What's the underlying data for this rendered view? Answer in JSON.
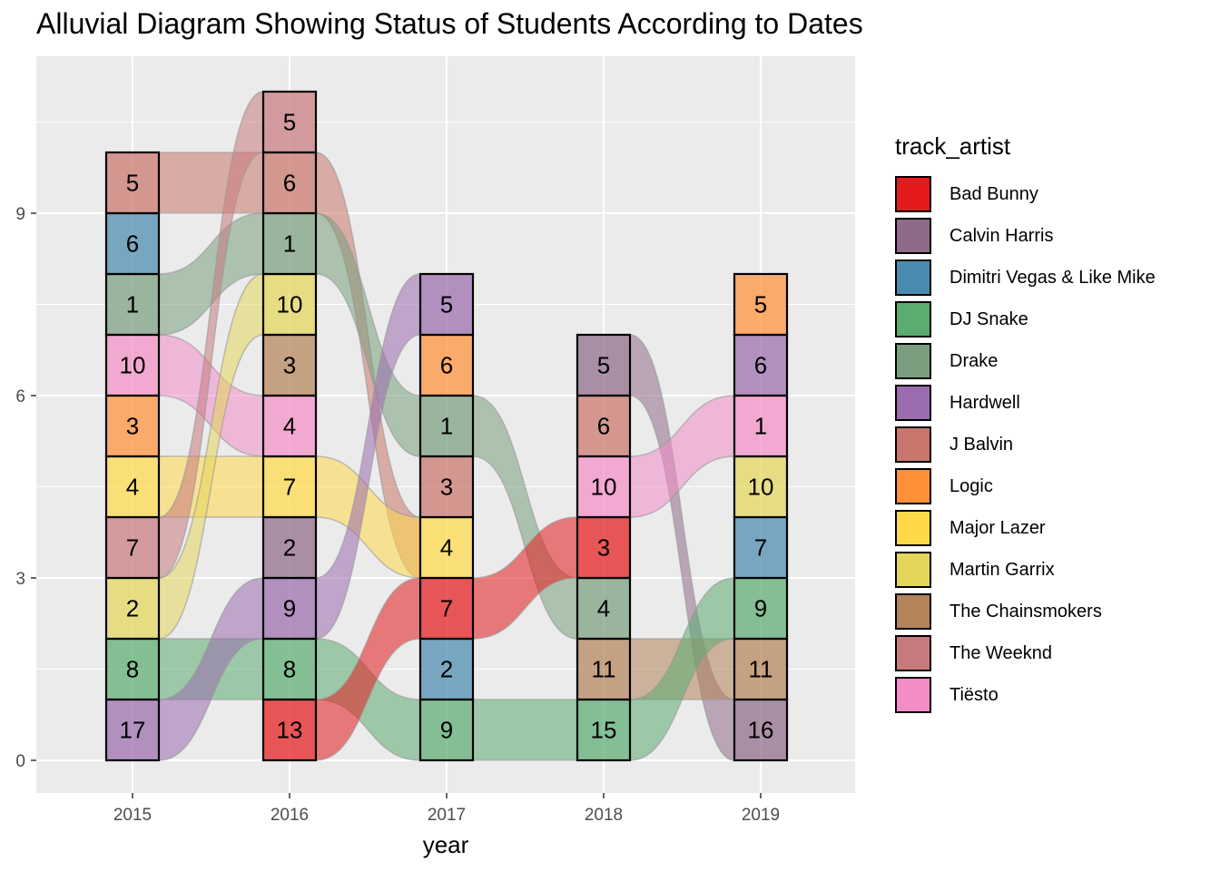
{
  "chart_data": {
    "type": "alluvial",
    "title": "Alluvial Diagram Showing Status of Students According to Dates",
    "xlabel": "year",
    "ylabel": "",
    "x_ticks": [
      "2015",
      "2016",
      "2017",
      "2018",
      "2019"
    ],
    "y_ticks": [
      "0",
      "3",
      "6",
      "9"
    ],
    "ylim": [
      0,
      11.5
    ],
    "legend_title": "track_artist",
    "legend_position": "right",
    "series": [
      {
        "name": "Bad Bunny",
        "color": "#E41A1C"
      },
      {
        "name": "Calvin Harris",
        "color": "#8F6B8A"
      },
      {
        "name": "Dimitri Vegas & Like Mike",
        "color": "#4A8CAF"
      },
      {
        "name": "DJ Snake",
        "color": "#5BAC71"
      },
      {
        "name": "Drake",
        "color": "#7A9E7E"
      },
      {
        "name": "Hardwell",
        "color": "#9A6CAE"
      },
      {
        "name": "J Balvin",
        "color": "#C9766C"
      },
      {
        "name": "Logic",
        "color": "#FF9038"
      },
      {
        "name": "Major Lazer",
        "color": "#FFD94A"
      },
      {
        "name": "Martin Garrix",
        "color": "#E3D65B"
      },
      {
        "name": "The Chainsmokers",
        "color": "#B5835A"
      },
      {
        "name": "The Weeknd",
        "color": "#C97A7E"
      },
      {
        "name": "Tiësto",
        "color": "#F38DC6"
      }
    ],
    "strata": [
      {
        "year": "2015",
        "cells": [
          {
            "label": "17",
            "artist": "Hardwell"
          },
          {
            "label": "8",
            "artist": "DJ Snake"
          },
          {
            "label": "2",
            "artist": "Martin Garrix"
          },
          {
            "label": "7",
            "artist": "The Weeknd"
          },
          {
            "label": "4",
            "artist": "Major Lazer"
          },
          {
            "label": "3",
            "artist": "Logic"
          },
          {
            "label": "10",
            "artist": "Tiësto"
          },
          {
            "label": "1",
            "artist": "Drake"
          },
          {
            "label": "6",
            "artist": "Dimitri Vegas & Like Mike"
          },
          {
            "label": "5",
            "artist": "J Balvin"
          }
        ]
      },
      {
        "year": "2016",
        "cells": [
          {
            "label": "13",
            "artist": "Bad Bunny"
          },
          {
            "label": "8",
            "artist": "DJ Snake"
          },
          {
            "label": "9",
            "artist": "Hardwell"
          },
          {
            "label": "2",
            "artist": "Calvin Harris"
          },
          {
            "label": "7",
            "artist": "Major Lazer"
          },
          {
            "label": "4",
            "artist": "Tiësto"
          },
          {
            "label": "3",
            "artist": "The Chainsmokers"
          },
          {
            "label": "10",
            "artist": "Martin Garrix"
          },
          {
            "label": "1",
            "artist": "Drake"
          },
          {
            "label": "6",
            "artist": "J Balvin"
          },
          {
            "label": "5",
            "artist": "The Weeknd"
          }
        ]
      },
      {
        "year": "2017",
        "cells": [
          {
            "label": "9",
            "artist": "DJ Snake"
          },
          {
            "label": "2",
            "artist": "Dimitri Vegas & Like Mike"
          },
          {
            "label": "7",
            "artist": "Bad Bunny"
          },
          {
            "label": "4",
            "artist": "Major Lazer"
          },
          {
            "label": "3",
            "artist": "J Balvin"
          },
          {
            "label": "1",
            "artist": "Drake"
          },
          {
            "label": "6",
            "artist": "Logic"
          },
          {
            "label": "5",
            "artist": "Hardwell"
          }
        ]
      },
      {
        "year": "2018",
        "cells": [
          {
            "label": "15",
            "artist": "DJ Snake"
          },
          {
            "label": "11",
            "artist": "The Chainsmokers"
          },
          {
            "label": "4",
            "artist": "Drake"
          },
          {
            "label": "3",
            "artist": "Bad Bunny"
          },
          {
            "label": "10",
            "artist": "Tiësto"
          },
          {
            "label": "6",
            "artist": "J Balvin"
          },
          {
            "label": "5",
            "artist": "Calvin Harris"
          }
        ]
      },
      {
        "year": "2019",
        "cells": [
          {
            "label": "16",
            "artist": "Calvin Harris"
          },
          {
            "label": "11",
            "artist": "The Chainsmokers"
          },
          {
            "label": "9",
            "artist": "DJ Snake"
          },
          {
            "label": "7",
            "artist": "Dimitri Vegas & Like Mike"
          },
          {
            "label": "10",
            "artist": "Martin Garrix"
          },
          {
            "label": "1",
            "artist": "Tiësto"
          },
          {
            "label": "6",
            "artist": "Hardwell"
          },
          {
            "label": "5",
            "artist": "Logic"
          }
        ]
      }
    ],
    "flows": [
      {
        "artist": "J Balvin",
        "from": [
          "2015",
          9
        ],
        "to": [
          "2016",
          9
        ]
      },
      {
        "artist": "Drake",
        "from": [
          "2015",
          7
        ],
        "to": [
          "2016",
          8
        ]
      },
      {
        "artist": "Tiësto",
        "from": [
          "2015",
          6
        ],
        "to": [
          "2016",
          5
        ]
      },
      {
        "artist": "Major Lazer",
        "from": [
          "2015",
          4
        ],
        "to": [
          "2016",
          4
        ]
      },
      {
        "artist": "The Weeknd",
        "from": [
          "2015",
          3
        ],
        "to": [
          "2016",
          10
        ]
      },
      {
        "artist": "Martin Garrix",
        "from": [
          "2015",
          2
        ],
        "to": [
          "2016",
          7
        ]
      },
      {
        "artist": "DJ Snake",
        "from": [
          "2015",
          1
        ],
        "to": [
          "2016",
          1
        ]
      },
      {
        "artist": "Hardwell",
        "from": [
          "2015",
          0
        ],
        "to": [
          "2016",
          2
        ]
      },
      {
        "artist": "J Balvin",
        "from": [
          "2016",
          9
        ],
        "to": [
          "2017",
          3
        ]
      },
      {
        "artist": "Drake",
        "from": [
          "2016",
          8
        ],
        "to": [
          "2017",
          5
        ]
      },
      {
        "artist": "Major Lazer",
        "from": [
          "2016",
          4
        ],
        "to": [
          "2017",
          3
        ]
      },
      {
        "artist": "Hardwell",
        "from": [
          "2016",
          2
        ],
        "to": [
          "2017",
          7
        ]
      },
      {
        "artist": "DJ Snake",
        "from": [
          "2016",
          1
        ],
        "to": [
          "2017",
          0
        ]
      },
      {
        "artist": "Bad Bunny",
        "from": [
          "2016",
          0
        ],
        "to": [
          "2017",
          2
        ]
      },
      {
        "artist": "Drake",
        "from": [
          "2017",
          5
        ],
        "to": [
          "2018",
          2
        ]
      },
      {
        "artist": "Bad Bunny",
        "from": [
          "2017",
          2
        ],
        "to": [
          "2018",
          3
        ]
      },
      {
        "artist": "DJ Snake",
        "from": [
          "2017",
          0
        ],
        "to": [
          "2018",
          0
        ]
      },
      {
        "artist": "Calvin Harris",
        "from": [
          "2018",
          6
        ],
        "to": [
          "2019",
          0
        ]
      },
      {
        "artist": "Tiësto",
        "from": [
          "2018",
          4
        ],
        "to": [
          "2019",
          5
        ]
      },
      {
        "artist": "The Chainsmokers",
        "from": [
          "2018",
          1
        ],
        "to": [
          "2019",
          1
        ]
      },
      {
        "artist": "DJ Snake",
        "from": [
          "2018",
          0
        ],
        "to": [
          "2019",
          2
        ]
      }
    ]
  }
}
